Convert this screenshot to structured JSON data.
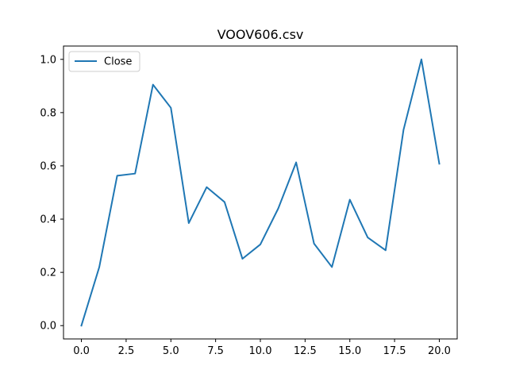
{
  "chart_data": {
    "type": "line",
    "title": "VOOV606.csv",
    "xlabel": "",
    "ylabel": "",
    "xlim": [
      -1.0,
      21.0
    ],
    "ylim": [
      -0.05,
      1.05
    ],
    "x_ticks": [
      0.0,
      2.5,
      5.0,
      7.5,
      10.0,
      12.5,
      15.0,
      17.5,
      20.0
    ],
    "x_tick_labels": [
      "0.0",
      "2.5",
      "5.0",
      "7.5",
      "10.0",
      "12.5",
      "15.0",
      "17.5",
      "20.0"
    ],
    "y_ticks": [
      0.0,
      0.2,
      0.4,
      0.6,
      0.8,
      1.0
    ],
    "y_tick_labels": [
      "0.0",
      "0.2",
      "0.4",
      "0.6",
      "0.8",
      "1.0"
    ],
    "grid": false,
    "legend_position": "top-left",
    "series": [
      {
        "name": "Close",
        "color": "#1f77b4",
        "x": [
          0,
          1,
          2,
          3,
          4,
          5,
          6,
          7,
          8,
          9,
          10,
          11,
          12,
          13,
          14,
          15,
          16,
          17,
          18,
          19,
          20
        ],
        "values": [
          0.0,
          0.22,
          0.563,
          0.571,
          0.905,
          0.818,
          0.385,
          0.52,
          0.464,
          0.251,
          0.305,
          0.44,
          0.613,
          0.308,
          0.22,
          0.473,
          0.331,
          0.283,
          0.735,
          1.0,
          0.608
        ]
      }
    ]
  }
}
